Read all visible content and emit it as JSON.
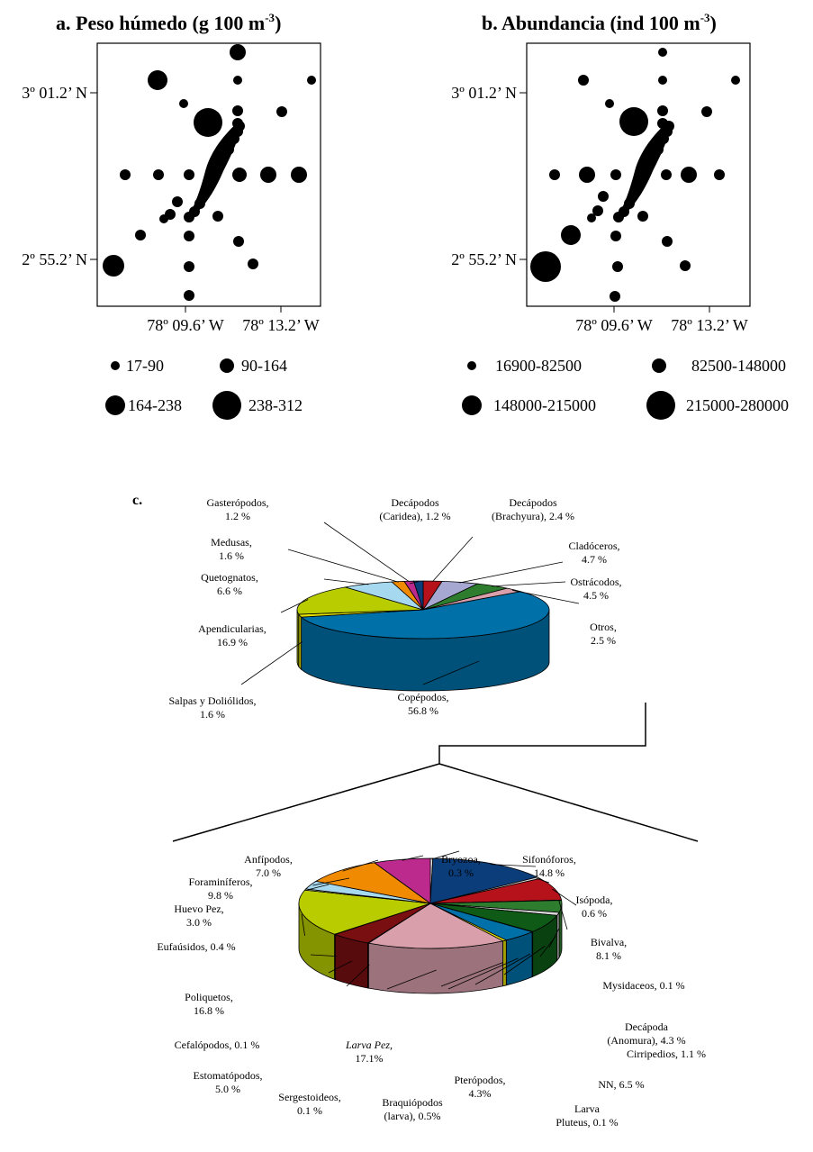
{
  "panels": [
    {
      "id": "a",
      "title": "a. Peso húmedo  (g 100 m",
      "title_sup": "-3",
      "title_end": ")",
      "y_ticks": [
        "3º 01.2’ N",
        "2º 55.2’ N"
      ],
      "x_ticks": [
        "78º 09.6’ W",
        "78º 13.2’ W"
      ],
      "legend": [
        "17-90",
        "90-164",
        "164-238",
        "238-312"
      ]
    },
    {
      "id": "b",
      "title": "b. Abundancia (ind 100 m",
      "title_sup": "-3",
      "title_end": ")",
      "y_ticks": [
        "3º 01.2’ N",
        "2º 55.2’ N"
      ],
      "x_ticks": [
        "78º 09.6’ W",
        "78º 13.2’ W"
      ],
      "legend": [
        "16900-82500",
        "82500-148000",
        "148000-215000",
        "215000-280000"
      ]
    }
  ],
  "panel_c_label": "c.",
  "chart_data": [
    {
      "type": "pie",
      "title": "",
      "categories": [
        "Decápodos (Brachyura)",
        "Cladóceros",
        "Ostrácodos",
        "Otros",
        "Copépodos",
        "Salpas y Doliólidos",
        "Apendicularias",
        "Quetognatos",
        "Medusas",
        "Gasterópodos",
        "Decápodos (Caridea)"
      ],
      "values": [
        2.4,
        4.7,
        4.5,
        2.5,
        56.8,
        1.6,
        16.9,
        6.6,
        1.6,
        1.2,
        1.2
      ],
      "colors": [
        "#b5121b",
        "#a7a8d2",
        "#2e7d2e",
        "#d9a0ac",
        "#0070a8",
        "#e3e000",
        "#b8cc00",
        "#a6d8ef",
        "#f08a00",
        "#bc2a8d",
        "#0a3d7a"
      ],
      "labels": [
        [
          "Decápodos",
          "(Brachyura), 2.4 %"
        ],
        [
          "Cladóceros,",
          "4.7 %"
        ],
        [
          "Ostrácodos,",
          "4.5 %"
        ],
        [
          "Otros,",
          "2.5 %"
        ],
        [
          "Copépodos,",
          "56.8 %"
        ],
        [
          "Salpas y Doliólidos,",
          "1.6 %"
        ],
        [
          "Apendicularias,",
          "16.9 %"
        ],
        [
          "Quetognatos,",
          "6.6 %"
        ],
        [
          "Medusas,",
          "1.6 %"
        ],
        [
          "Gasterópodos,",
          "1.2 %"
        ],
        [
          "Decápodos",
          "(Caridea), 1.2 %"
        ]
      ]
    },
    {
      "type": "pie",
      "title": "",
      "categories": [
        "Bryozoa",
        "Sifonóforos",
        "Isópoda",
        "Bivalva",
        "Mysidaceos",
        "Decápoda (Anomura)",
        "Cirripedios",
        "NN",
        "Larva Pluteus",
        "Pterópodos",
        "Braquiópodos (larva)",
        "Larva Pez",
        "Sergestoideos",
        "Estomatópodos",
        "Cefalópodos",
        "Poliquetos",
        "Eufaúsidos",
        "Huevo Pez",
        "Foraminíferos",
        "Anfípodos"
      ],
      "values": [
        0.3,
        14.8,
        0.6,
        8.1,
        0.1,
        4.3,
        1.1,
        6.5,
        0.1,
        4.3,
        0.5,
        17.1,
        0.1,
        5.0,
        0.1,
        16.8,
        0.4,
        3.0,
        9.8,
        7.0
      ],
      "colors": [
        "#e6e6e6",
        "#0a3d7a",
        "#d9d9d9",
        "#b5121b",
        "#a7a8d2",
        "#2e7d2e",
        "#d8d8d8",
        "#0e5a16",
        "#ffffff",
        "#0070a8",
        "#e3e000",
        "#d9a0ac",
        "#d0d0d0",
        "#7a0f12",
        "#1a5a9a",
        "#b8cc00",
        "#f0f0f0",
        "#a6d8ef",
        "#f08a00",
        "#bc2a8d"
      ],
      "labels": [
        [
          "Bryozoa,",
          "0.3 %"
        ],
        [
          "Sifonóforos,",
          "14.8 %"
        ],
        [
          "Isópoda,",
          "0.6 %"
        ],
        [
          "Bivalva,",
          "8.1 %"
        ],
        [
          "Mysidaceos, 0.1 %"
        ],
        [
          "Decápoda",
          "(Anomura), 4.3 %"
        ],
        [
          "Cirripedios, 1.1 %"
        ],
        [
          "NN,  6.5 %"
        ],
        [
          "Larva",
          "Pluteus, 0.1 %"
        ],
        [
          "Pterópodos,",
          "4.3%"
        ],
        [
          "Braquiópodos",
          "(larva), 0.5%"
        ],
        [
          "Larva Pez,",
          "17.1%"
        ],
        [
          "Sergestoideos,",
          "0.1 %"
        ],
        [
          "Estomatópodos,",
          "5.0 %"
        ],
        [
          "Cefalópodos, 0.1 %"
        ],
        [
          "Poliquetos,",
          "16.8 %"
        ],
        [
          "Eufaúsidos, 0.4 %"
        ],
        [
          "Huevo Pez,",
          "3.0 %"
        ],
        [
          "Foraminíferos,",
          "9.8 %"
        ],
        [
          "Anfípodos,",
          "7.0 %"
        ]
      ]
    }
  ]
}
